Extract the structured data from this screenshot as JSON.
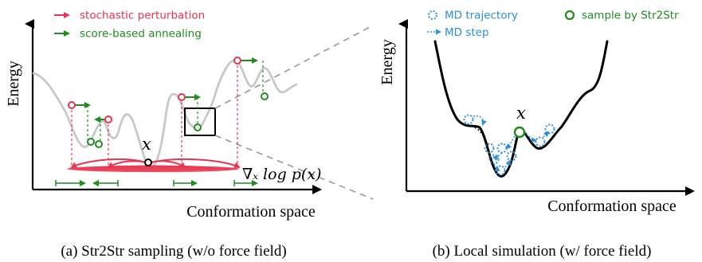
{
  "panel_a": {
    "legend": {
      "perturbation": "stochastic perturbation",
      "annealing": "score-based annealing"
    },
    "ylabel": "Energy",
    "xlabel": "Conformation space",
    "x_symbol": "x",
    "grad_text": "∇ₓ log p(x)",
    "caption": "(a) Str2Str sampling (w/o force field)"
  },
  "panel_b": {
    "legend": {
      "trajectory": "MD trajectory",
      "step": "MD step",
      "sample": "sample by Str2Str"
    },
    "ylabel": "Energy",
    "xlabel": "Conformation space",
    "x_symbol": "x",
    "caption": "(b) Local simulation (w/ force field)"
  },
  "colors": {
    "perturbation": "#e8344e",
    "annealing": "#1e8c1e",
    "md": "#2a8fd8",
    "landscape_light": "#c8c8c8"
  }
}
